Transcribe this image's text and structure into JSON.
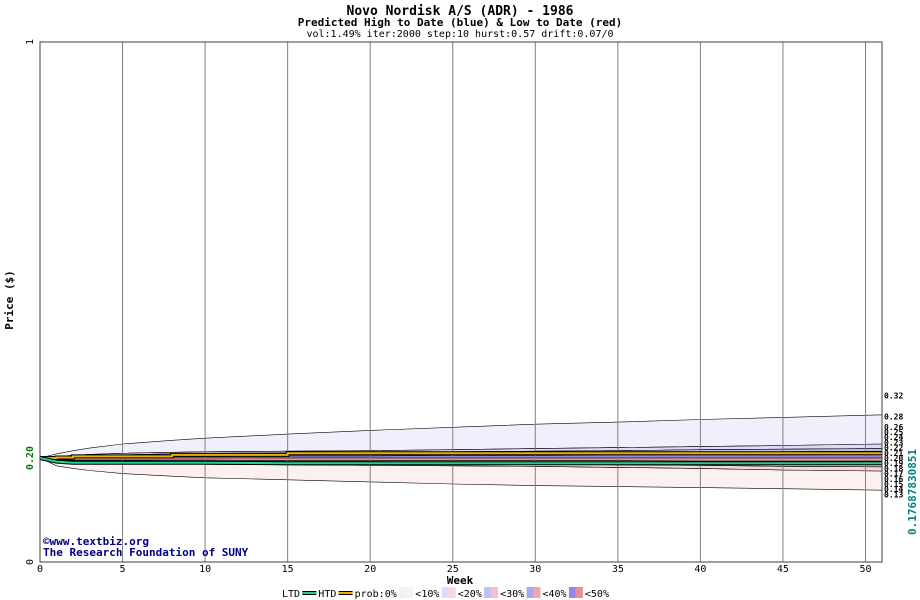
{
  "chart_data": {
    "type": "area",
    "title": "Novo Nordisk A/S (ADR) - 1986",
    "subtitle": "Predicted High to Date (blue) &  Low to Date (red)",
    "params": "vol:1.49% iter:2000 step:10 hurst:0.57 drift:0.07/0",
    "xlabel": "Week",
    "ylabel": "Price ($)",
    "xlim": [
      0,
      51
    ],
    "ylim": [
      0,
      1
    ],
    "x_ticks": [
      0,
      5,
      10,
      15,
      20,
      25,
      30,
      35,
      40,
      45,
      50
    ],
    "y_tick_labels": [
      {
        "value": 0,
        "label": "0"
      },
      {
        "value": 0.2,
        "label": "0.20"
      },
      {
        "value": 1,
        "label": "1"
      }
    ],
    "grid": true,
    "start_price": 0.2,
    "current_price_label": "0.17687830851",
    "right_labels": [
      "0.32",
      "0.28",
      "0.26",
      "0.25",
      "0.24",
      "0.23",
      "0.22",
      "0.21",
      "0.20",
      "0.19",
      "0.18",
      "0.17",
      "0.16",
      "0.15",
      "0.14",
      "0.13"
    ],
    "x": [
      0,
      1,
      2,
      3,
      5,
      8,
      10,
      15,
      20,
      25,
      30,
      35,
      40,
      45,
      51
    ],
    "high_bands": [
      {
        "prob": "<10%",
        "values": [
          0.2,
          0.208,
          0.214,
          0.219,
          0.227,
          0.234,
          0.238,
          0.246,
          0.253,
          0.259,
          0.265,
          0.269,
          0.274,
          0.278,
          0.283
        ]
      },
      {
        "prob": "<20%",
        "values": [
          0.2,
          0.203,
          0.205,
          0.207,
          0.209,
          0.211,
          0.212,
          0.213,
          0.214,
          0.216,
          0.218,
          0.22,
          0.222,
          0.224,
          0.227
        ]
      },
      {
        "prob": "<30%",
        "values": [
          0.2,
          0.202,
          0.204,
          0.205,
          0.206,
          0.208,
          0.209,
          0.21,
          0.211,
          0.212,
          0.213,
          0.214,
          0.216,
          0.217,
          0.218
        ]
      },
      {
        "prob": "<40%",
        "values": [
          0.2,
          0.201,
          0.202,
          0.203,
          0.204,
          0.205,
          0.206,
          0.207,
          0.207,
          0.208,
          0.209,
          0.21,
          0.211,
          0.212,
          0.213
        ]
      },
      {
        "prob": "<50%",
        "values": [
          0.2,
          0.2,
          0.201,
          0.202,
          0.202,
          0.203,
          0.203,
          0.204,
          0.204,
          0.205,
          0.205,
          0.206,
          0.206,
          0.206,
          0.207
        ]
      }
    ],
    "low_bands": [
      {
        "prob": "<10%",
        "values": [
          0.2,
          0.185,
          0.18,
          0.176,
          0.17,
          0.165,
          0.162,
          0.158,
          0.154,
          0.15,
          0.147,
          0.145,
          0.143,
          0.141,
          0.138
        ]
      },
      {
        "prob": "<20%",
        "values": [
          0.2,
          0.193,
          0.192,
          0.191,
          0.19,
          0.189,
          0.188,
          0.187,
          0.186,
          0.185,
          0.184,
          0.182,
          0.18,
          0.177,
          0.175
        ]
      },
      {
        "prob": "<30%",
        "values": [
          0.2,
          0.195,
          0.194,
          0.193,
          0.193,
          0.192,
          0.192,
          0.191,
          0.19,
          0.189,
          0.188,
          0.187,
          0.186,
          0.184,
          0.183
        ]
      },
      {
        "prob": "<40%",
        "values": [
          0.2,
          0.196,
          0.195,
          0.195,
          0.195,
          0.194,
          0.194,
          0.193,
          0.193,
          0.192,
          0.191,
          0.191,
          0.19,
          0.189,
          0.188
        ]
      },
      {
        "prob": "<50%",
        "values": [
          0.2,
          0.197,
          0.196,
          0.196,
          0.196,
          0.196,
          0.196,
          0.195,
          0.195,
          0.195,
          0.195,
          0.195,
          0.194,
          0.194,
          0.194
        ]
      }
    ],
    "htd_line": [
      0.2,
      0.201,
      0.203,
      0.203,
      0.203,
      0.206,
      0.206,
      0.209,
      0.209,
      0.209,
      0.209,
      0.209,
      0.209,
      0.209,
      0.209
    ],
    "ltd_line": [
      0.2,
      0.193,
      0.191,
      0.191,
      0.191,
      0.191,
      0.191,
      0.19,
      0.19,
      0.19,
      0.19,
      0.19,
      0.19,
      0.19,
      0.19
    ],
    "legend": {
      "ltd": "LTD",
      "htd": "HTD",
      "prob": "prob:0%",
      "items": [
        "<10%",
        "<20%",
        "<30%",
        "<40%",
        "<50%"
      ]
    },
    "colors": {
      "htd": "#f0b000",
      "ltd": "#20d090",
      "grid": "#808080",
      "high": [
        "#f0f0fc",
        "#dcdcf8",
        "#c0c0f4",
        "#a8a8f0",
        "#8c8ce8"
      ],
      "low": [
        "#fcf0f0",
        "#f8d8dc",
        "#f4c0c4",
        "#f0a8ac",
        "#e89098"
      ],
      "current": "#008080",
      "current_alt": "#a08000"
    }
  },
  "watermark": {
    "line1": "©www.textbiz.org",
    "line2": "The Research Foundation of SUNY"
  }
}
